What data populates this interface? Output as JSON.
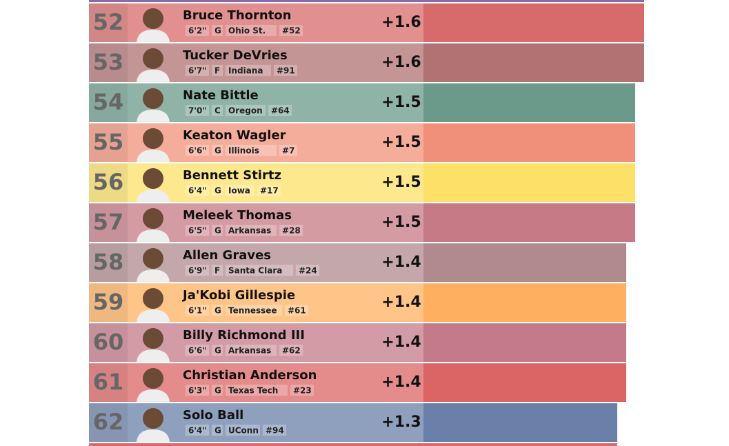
{
  "chart_data": {
    "type": "bar",
    "orientation": "horizontal",
    "rows": [
      {
        "rank": 52,
        "name": "Bruce Thornton",
        "height": "6'2\"",
        "position": "G",
        "school": "Ohio St.",
        "number": "#52",
        "value": 1.6,
        "value_label": "+1.6",
        "color": "#d76a6a"
      },
      {
        "rank": 53,
        "name": "Tucker DeVries",
        "height": "6'7\"",
        "position": "F",
        "school": "Indiana",
        "number": "#91",
        "value": 1.6,
        "value_label": "+1.6",
        "color": "#b07272"
      },
      {
        "rank": 54,
        "name": "Nate Bittle",
        "height": "7'0\"",
        "position": "C",
        "school": "Oregon",
        "number": "#64",
        "value": 1.5,
        "value_label": "+1.5",
        "color": "#6b9a8a"
      },
      {
        "rank": 55,
        "name": "Keaton Wagler",
        "height": "6'6\"",
        "position": "G",
        "school": "Illinois",
        "number": "#7",
        "value": 1.5,
        "value_label": "+1.5",
        "color": "#f0907a"
      },
      {
        "rank": 56,
        "name": "Bennett Stirtz",
        "height": "6'4\"",
        "position": "G",
        "school": "Iowa",
        "number": "#17",
        "value": 1.5,
        "value_label": "+1.5",
        "color": "#fde068"
      },
      {
        "rank": 57,
        "name": "Meleek Thomas",
        "height": "6'5\"",
        "position": "G",
        "school": "Arkansas",
        "number": "#28",
        "value": 1.5,
        "value_label": "+1.5",
        "color": "#c67a85"
      },
      {
        "rank": 58,
        "name": "Allen Graves",
        "height": "6'9\"",
        "position": "F",
        "school": "Santa Clara",
        "number": "#24",
        "value": 1.4,
        "value_label": "+1.4",
        "color": "#b08a8f"
      },
      {
        "rank": 59,
        "name": "Ja'Kobi Gillespie",
        "height": "6'1\"",
        "position": "G",
        "school": "Tennessee",
        "number": "#61",
        "value": 1.4,
        "value_label": "+1.4",
        "color": "#feb060"
      },
      {
        "rank": 60,
        "name": "Billy Richmond III",
        "height": "6'6\"",
        "position": "G",
        "school": "Arkansas",
        "number": "#62",
        "value": 1.4,
        "value_label": "+1.4",
        "color": "#c47a88"
      },
      {
        "rank": 61,
        "name": "Christian Anderson",
        "height": "6'3\"",
        "position": "G",
        "school": "Texas Tech",
        "number": "#23",
        "value": 1.4,
        "value_label": "+1.4",
        "color": "#db6464"
      },
      {
        "rank": 62,
        "name": "Solo Ball",
        "height": "6'4\"",
        "position": "G",
        "school": "UConn",
        "number": "#94",
        "value": 1.3,
        "value_label": "+1.3",
        "color": "#6a80a8"
      }
    ]
  }
}
